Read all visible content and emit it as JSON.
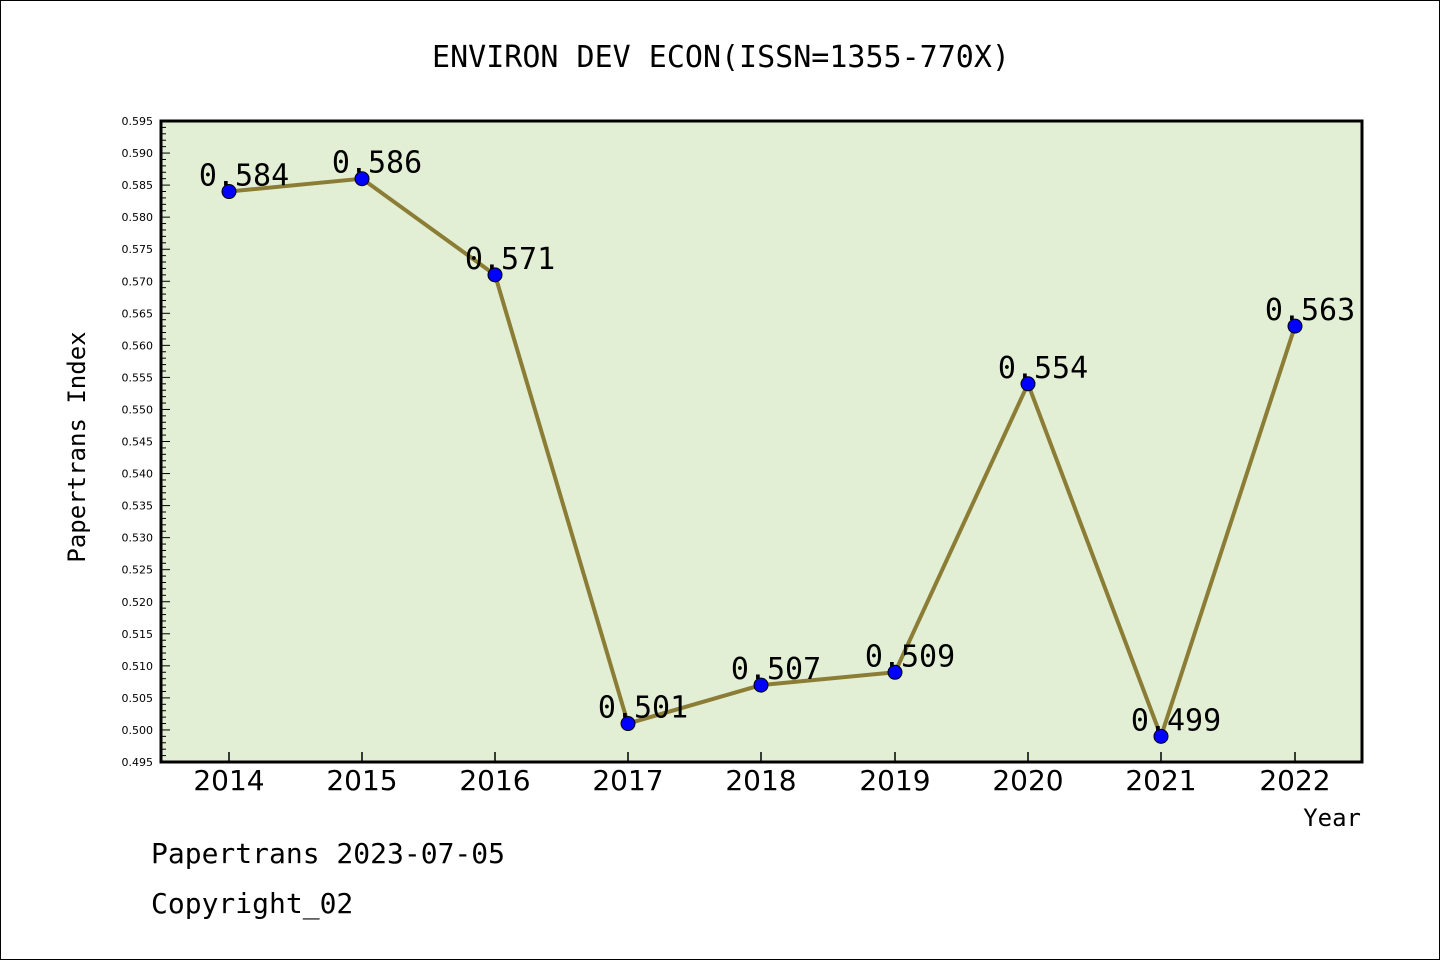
{
  "chart_data": {
    "type": "line",
    "title": "ENVIRON DEV ECON(ISSN=1355-770X)",
    "xlabel": "Year",
    "ylabel": "Papertrans Index",
    "categories": [
      "2014",
      "2015",
      "2016",
      "2017",
      "2018",
      "2019",
      "2020",
      "2021",
      "2022"
    ],
    "values": [
      0.584,
      0.586,
      0.571,
      0.501,
      0.507,
      0.509,
      0.554,
      0.499,
      0.563
    ],
    "data_labels": [
      "0.584",
      "0.586",
      "0.571",
      "0.501",
      "0.507",
      "0.509",
      "0.554",
      "0.499",
      "0.563"
    ],
    "ylim": [
      0.495,
      0.595
    ],
    "y_ticks": [
      "0.495",
      "0.500",
      "0.505",
      "0.510",
      "0.515",
      "0.520",
      "0.525",
      "0.530",
      "0.535",
      "0.540",
      "0.545",
      "0.550",
      "0.555",
      "0.560",
      "0.565",
      "0.570",
      "0.575",
      "0.580",
      "0.585",
      "0.590",
      "0.595"
    ],
    "grid": false,
    "colors": {
      "plot_background": "#e2efd5",
      "line": "#8b7d35",
      "marker": "#0000ff",
      "axes": "#000000"
    }
  },
  "footer": {
    "source": "Papertrans 2023-07-05",
    "copyright": "Copyright_02"
  }
}
